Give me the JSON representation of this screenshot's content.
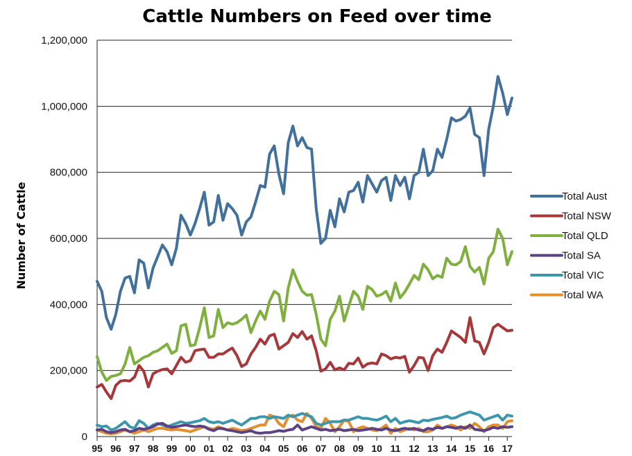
{
  "chart_data": {
    "type": "line",
    "title": "Cattle Numbers on Feed over time",
    "xlabel": "",
    "ylabel": "Number of Cattle",
    "ylim": [
      0,
      1200000
    ],
    "yticks": [
      0,
      200000,
      400000,
      600000,
      800000,
      1000000,
      1200000
    ],
    "ytick_labels": [
      "0",
      "200,000",
      "400,000",
      "600,000",
      "800,000",
      "1,000,000",
      "1,200,000"
    ],
    "xticks": [
      "95",
      "96",
      "97",
      "98",
      "99",
      "00",
      "01",
      "02",
      "03",
      "04",
      "05",
      "06",
      "07",
      "08",
      "09",
      "10",
      "11",
      "12",
      "13",
      "14",
      "15",
      "16",
      "17"
    ],
    "x_unit": "quarter",
    "x_start": 1995.0,
    "grid": "horizontal",
    "legend": "right",
    "series": [
      {
        "name": "Total Aust",
        "color": "#41709c",
        "values": [
          470000,
          440000,
          360000,
          325000,
          370000,
          440000,
          480000,
          485000,
          435000,
          535000,
          525000,
          450000,
          510000,
          545000,
          580000,
          560000,
          520000,
          570000,
          670000,
          645000,
          610000,
          645000,
          690000,
          740000,
          640000,
          650000,
          730000,
          655000,
          705000,
          690000,
          670000,
          610000,
          650000,
          665000,
          710000,
          760000,
          755000,
          855000,
          880000,
          795000,
          735000,
          890000,
          940000,
          880000,
          905000,
          875000,
          870000,
          690000,
          585000,
          600000,
          685000,
          635000,
          720000,
          680000,
          740000,
          745000,
          770000,
          710000,
          790000,
          765000,
          740000,
          775000,
          785000,
          715000,
          790000,
          760000,
          785000,
          720000,
          790000,
          800000,
          870000,
          790000,
          805000,
          870000,
          845000,
          900000,
          965000,
          955000,
          960000,
          970000,
          995000,
          915000,
          905000,
          790000,
          930000,
          1000000,
          1090000,
          1040000,
          975000,
          1025000
        ]
      },
      {
        "name": "Total NSW",
        "color": "#a6373a",
        "values": [
          150000,
          158000,
          135000,
          115000,
          155000,
          168000,
          170000,
          168000,
          180000,
          215000,
          198000,
          150000,
          190000,
          198000,
          203000,
          205000,
          190000,
          215000,
          240000,
          225000,
          230000,
          260000,
          263000,
          265000,
          240000,
          240000,
          250000,
          250000,
          260000,
          268000,
          245000,
          212000,
          220000,
          250000,
          270000,
          295000,
          280000,
          305000,
          310000,
          265000,
          275000,
          285000,
          312000,
          300000,
          318000,
          295000,
          305000,
          260000,
          198000,
          205000,
          225000,
          202000,
          208000,
          202000,
          222000,
          220000,
          238000,
          210000,
          220000,
          223000,
          220000,
          250000,
          245000,
          235000,
          240000,
          238000,
          243000,
          195000,
          215000,
          240000,
          238000,
          200000,
          245000,
          265000,
          255000,
          285000,
          320000,
          310000,
          300000,
          285000,
          360000,
          290000,
          285000,
          250000,
          285000,
          330000,
          340000,
          330000,
          320000,
          322000
        ]
      },
      {
        "name": "Total QLD",
        "color": "#7faf3e",
        "values": [
          242000,
          195000,
          170000,
          182000,
          185000,
          190000,
          220000,
          270000,
          220000,
          230000,
          240000,
          245000,
          255000,
          260000,
          270000,
          280000,
          252000,
          260000,
          335000,
          340000,
          275000,
          278000,
          330000,
          390000,
          300000,
          305000,
          385000,
          330000,
          345000,
          340000,
          345000,
          355000,
          368000,
          315000,
          350000,
          380000,
          355000,
          410000,
          440000,
          430000,
          350000,
          450000,
          505000,
          470000,
          440000,
          428000,
          430000,
          370000,
          295000,
          275000,
          355000,
          380000,
          425000,
          350000,
          395000,
          440000,
          425000,
          385000,
          455000,
          445000,
          425000,
          430000,
          440000,
          410000,
          465000,
          420000,
          438000,
          462000,
          488000,
          475000,
          522000,
          505000,
          478000,
          488000,
          482000,
          540000,
          522000,
          520000,
          530000,
          575000,
          515000,
          498000,
          512000,
          462000,
          540000,
          560000,
          628000,
          600000,
          520000,
          560000
        ]
      },
      {
        "name": "Total SA",
        "color": "#5c4285",
        "values": [
          20000,
          22000,
          15000,
          12000,
          15000,
          20000,
          22000,
          15000,
          18000,
          25000,
          22000,
          25000,
          30000,
          38000,
          40000,
          32000,
          28000,
          30000,
          33000,
          35000,
          32000,
          30000,
          32000,
          30000,
          22000,
          18000,
          25000,
          24000,
          20000,
          18000,
          15000,
          12000,
          15000,
          18000,
          12000,
          10000,
          12000,
          12000,
          15000,
          18000,
          16000,
          20000,
          22000,
          35000,
          20000,
          25000,
          30000,
          25000,
          20000,
          22000,
          18000,
          20000,
          22000,
          18000,
          20000,
          22000,
          18000,
          20000,
          22000,
          25000,
          22000,
          20000,
          25000,
          20000,
          18000,
          22000,
          25000,
          22000,
          25000,
          20000,
          18000,
          25000,
          22000,
          28000,
          25000,
          30000,
          28000,
          25000,
          30000,
          25000,
          35000,
          22000,
          20000,
          18000,
          22000,
          28000,
          25000,
          30000,
          28000,
          30000
        ]
      },
      {
        "name": "Total VIC",
        "color": "#3c97ad",
        "values": [
          35000,
          30000,
          32000,
          20000,
          25000,
          35000,
          45000,
          30000,
          25000,
          48000,
          40000,
          25000,
          35000,
          40000,
          35000,
          30000,
          35000,
          40000,
          45000,
          40000,
          42000,
          45000,
          48000,
          55000,
          45000,
          42000,
          45000,
          40000,
          45000,
          50000,
          42000,
          35000,
          45000,
          55000,
          55000,
          60000,
          60000,
          55000,
          60000,
          58000,
          55000,
          65000,
          60000,
          65000,
          70000,
          65000,
          60000,
          40000,
          35000,
          40000,
          45000,
          45000,
          45000,
          50000,
          50000,
          55000,
          60000,
          55000,
          55000,
          52000,
          50000,
          55000,
          62000,
          45000,
          55000,
          40000,
          45000,
          48000,
          45000,
          42000,
          50000,
          48000,
          52000,
          55000,
          58000,
          62000,
          55000,
          58000,
          65000,
          70000,
          75000,
          70000,
          65000,
          50000,
          55000,
          60000,
          65000,
          50000,
          65000,
          62000
        ]
      },
      {
        "name": "Total WA",
        "color": "#e38f2e",
        "values": [
          20000,
          15000,
          10000,
          8000,
          10000,
          15000,
          20000,
          15000,
          10000,
          15000,
          20000,
          15000,
          20000,
          25000,
          25000,
          22000,
          20000,
          22000,
          20000,
          18000,
          15000,
          20000,
          25000,
          30000,
          25000,
          22000,
          30000,
          25000,
          20000,
          25000,
          22000,
          18000,
          20000,
          25000,
          30000,
          35000,
          35000,
          65000,
          60000,
          40000,
          30000,
          60000,
          65000,
          50000,
          45000,
          70000,
          55000,
          30000,
          25000,
          55000,
          40000,
          15000,
          30000,
          50000,
          45000,
          15000,
          25000,
          30000,
          25000,
          20000,
          18000,
          25000,
          35000,
          10000,
          25000,
          15000,
          20000,
          25000,
          20000,
          25000,
          15000,
          15000,
          20000,
          35000,
          25000,
          30000,
          35000,
          30000,
          20000,
          30000,
          25000,
          40000,
          30000,
          15000,
          30000,
          35000,
          35000,
          25000,
          45000,
          48000
        ]
      }
    ]
  }
}
